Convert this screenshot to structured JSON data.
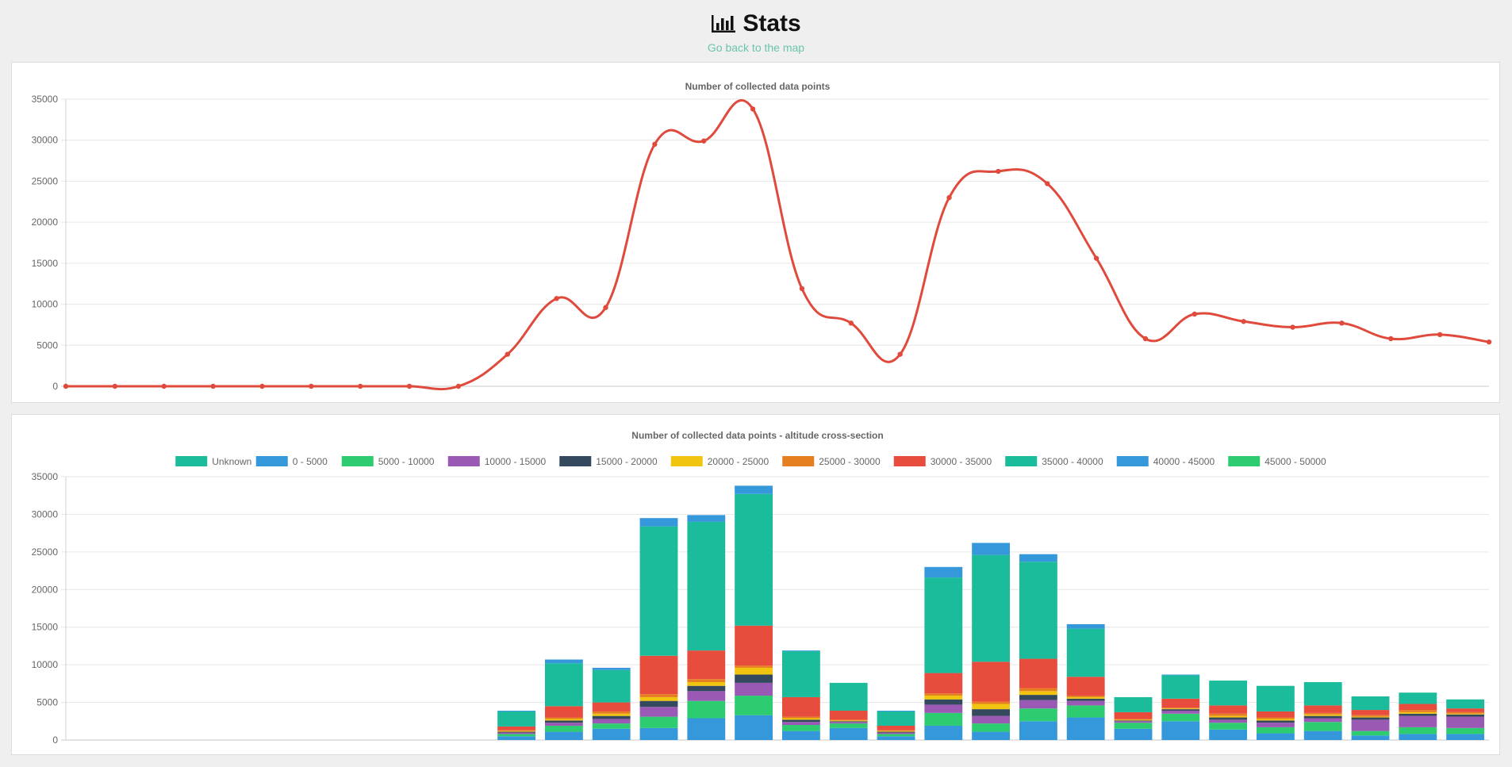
{
  "page": {
    "title": "Stats",
    "back_link": "Go back to the map"
  },
  "chart_data": [
    {
      "type": "line",
      "title": "Number of collected data points",
      "ylim": [
        0,
        35000
      ],
      "yticks": [
        0,
        5000,
        10000,
        15000,
        20000,
        25000,
        30000,
        35000
      ],
      "grid": true,
      "legend": "none",
      "color": "#e04a3d",
      "values": [
        0,
        0,
        0,
        0,
        0,
        0,
        0,
        0,
        0,
        3900,
        10700,
        9600,
        29500,
        29900,
        33800,
        11900,
        7700,
        3900,
        23000,
        26200,
        24700,
        15600,
        5800,
        8800,
        7900,
        7200,
        7700,
        5800,
        6300,
        5400
      ]
    },
    {
      "type": "bar",
      "stacked": true,
      "title": "Number of collected data points - altitude cross-section",
      "ylim": [
        0,
        35000
      ],
      "yticks": [
        0,
        5000,
        10000,
        15000,
        20000,
        25000,
        30000,
        35000
      ],
      "grid": true,
      "legend": "top",
      "series": [
        {
          "name": "Unknown",
          "color": "#1abc9c",
          "values": [
            0,
            0,
            0,
            0,
            0,
            0,
            0,
            0,
            0,
            0,
            0,
            0,
            0,
            0,
            0,
            0,
            0,
            0,
            0,
            0,
            0,
            0,
            0,
            0,
            0,
            0,
            0,
            0,
            0,
            0
          ]
        },
        {
          "name": "0 - 5000",
          "color": "#3498db",
          "values": [
            0,
            0,
            0,
            0,
            0,
            0,
            0,
            0,
            0,
            500,
            1100,
            1500,
            1600,
            2900,
            3300,
            1200,
            1600,
            500,
            1900,
            1100,
            2500,
            3000,
            1500,
            2500,
            1400,
            900,
            1200,
            600,
            800,
            800
          ]
        },
        {
          "name": "5000 - 10000",
          "color": "#2ecc71",
          "values": [
            0,
            0,
            0,
            0,
            0,
            0,
            0,
            0,
            0,
            300,
            800,
            700,
            1500,
            2300,
            2600,
            800,
            600,
            300,
            1700,
            1100,
            1700,
            1600,
            800,
            1000,
            900,
            800,
            1200,
            600,
            900,
            800
          ]
        },
        {
          "name": "10000 - 15000",
          "color": "#9b59b6",
          "values": [
            0,
            0,
            0,
            0,
            0,
            0,
            0,
            0,
            0,
            200,
            400,
            600,
            1300,
            1300,
            1700,
            400,
            200,
            200,
            1100,
            1000,
            1100,
            600,
            200,
            400,
            400,
            600,
            500,
            1500,
            1500,
            1500
          ]
        },
        {
          "name": "15000 - 20000",
          "color": "#34495e",
          "values": [
            0,
            0,
            0,
            0,
            0,
            0,
            0,
            0,
            0,
            100,
            300,
            400,
            800,
            700,
            1100,
            300,
            100,
            100,
            700,
            900,
            700,
            300,
            100,
            200,
            300,
            300,
            300,
            300,
            300,
            300
          ]
        },
        {
          "name": "20000 - 25000",
          "color": "#f1c40f",
          "values": [
            0,
            0,
            0,
            0,
            0,
            0,
            0,
            0,
            0,
            100,
            200,
            300,
            500,
            500,
            900,
            200,
            100,
            100,
            500,
            700,
            500,
            200,
            100,
            100,
            200,
            200,
            200,
            100,
            200,
            100
          ]
        },
        {
          "name": "25000 - 30000",
          "color": "#e67e22",
          "values": [
            0,
            0,
            0,
            0,
            0,
            0,
            0,
            0,
            0,
            100,
            200,
            300,
            400,
            400,
            300,
            200,
            100,
            100,
            300,
            300,
            400,
            200,
            100,
            100,
            300,
            200,
            200,
            200,
            300,
            200
          ]
        },
        {
          "name": "30000 - 35000",
          "color": "#e74c3c",
          "values": [
            0,
            0,
            0,
            0,
            0,
            0,
            0,
            0,
            0,
            500,
            1500,
            1200,
            5100,
            3800,
            5300,
            2600,
            1200,
            600,
            2700,
            5300,
            3900,
            2500,
            900,
            1200,
            1100,
            800,
            1000,
            700,
            800,
            500
          ]
        },
        {
          "name": "35000 - 40000",
          "color": "#1abc9c",
          "values": [
            0,
            0,
            0,
            0,
            0,
            0,
            0,
            0,
            0,
            2000,
            5700,
            4300,
            17200,
            17100,
            17500,
            6100,
            3700,
            1900,
            12700,
            14200,
            12900,
            6400,
            2000,
            3100,
            3300,
            3400,
            3100,
            1800,
            1500,
            1200
          ]
        },
        {
          "name": "40000 - 45000",
          "color": "#3498db",
          "values": [
            0,
            0,
            0,
            0,
            0,
            0,
            0,
            0,
            0,
            100,
            500,
            300,
            1100,
            900,
            1100,
            100,
            0,
            100,
            1400,
            1600,
            1000,
            600,
            0,
            100,
            0,
            0,
            0,
            0,
            0,
            0
          ]
        },
        {
          "name": "45000 - 50000",
          "color": "#2ecc71",
          "values": [
            0,
            0,
            0,
            0,
            0,
            0,
            0,
            0,
            0,
            0,
            0,
            0,
            0,
            0,
            0,
            0,
            0,
            0,
            0,
            0,
            0,
            0,
            0,
            0,
            0,
            0,
            0,
            0,
            0,
            0
          ]
        }
      ]
    }
  ]
}
